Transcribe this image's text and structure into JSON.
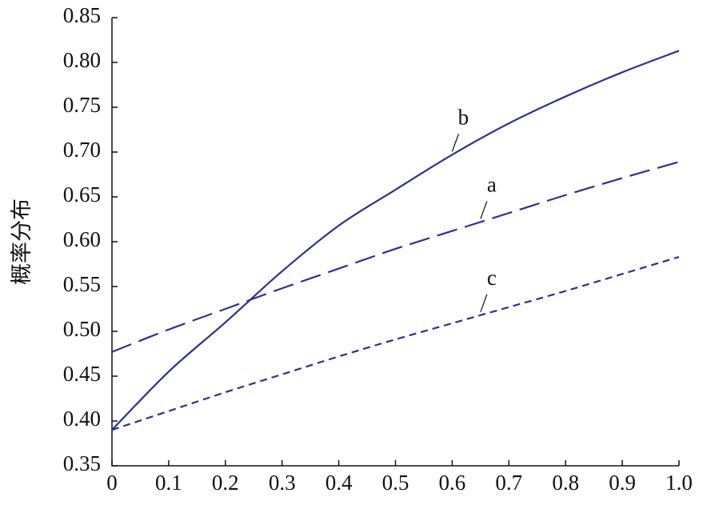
{
  "chart_data": {
    "type": "line",
    "y_label": "概率分布",
    "x": [
      0,
      0.1,
      0.2,
      0.3,
      0.4,
      0.5,
      0.6,
      0.7,
      0.8,
      0.9,
      1.0
    ],
    "series": [
      {
        "name": "a",
        "color": "#2b3190",
        "linestyle": "--",
        "values": [
          0.477,
          0.502,
          0.525,
          0.548,
          0.57,
          0.592,
          0.612,
          0.632,
          0.652,
          0.671,
          0.689
        ]
      },
      {
        "name": "b",
        "color": "#2b3190",
        "linestyle": "-",
        "values": [
          0.39,
          0.455,
          0.51,
          0.567,
          0.618,
          0.658,
          0.697,
          0.732,
          0.762,
          0.789,
          0.813
        ]
      },
      {
        "name": "c",
        "color": "#2b3190",
        "linestyle": ":",
        "values": [
          0.39,
          0.411,
          0.432,
          0.452,
          0.472,
          0.491,
          0.509,
          0.527,
          0.545,
          0.564,
          0.583
        ]
      }
    ],
    "xlim": [
      0,
      1.0
    ],
    "xticks": [
      0,
      0.1,
      0.2,
      0.3,
      0.4,
      0.5,
      0.6,
      0.7,
      0.8,
      0.9,
      {
        "value": 1.0,
        "label": "1.0"
      }
    ],
    "ylim": [
      0.35,
      0.85
    ],
    "yticks": [
      0.35,
      {
        "value": 0.4,
        "label": "0.40"
      },
      0.45,
      {
        "value": 0.5,
        "label": "0.50"
      },
      0.55,
      {
        "value": 0.6,
        "label": "0.60"
      },
      0.65,
      {
        "value": 0.7,
        "label": "0.70"
      },
      0.75,
      {
        "value": 0.8,
        "label": "0.80"
      },
      0.85
    ]
  }
}
